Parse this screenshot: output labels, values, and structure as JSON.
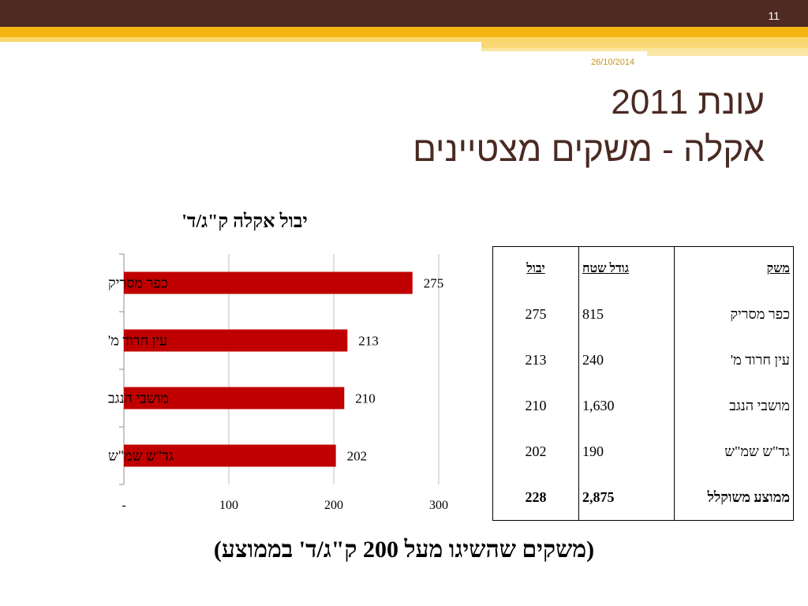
{
  "slide_number": "11",
  "date": "26/10/2014",
  "title_line1": "עונת 2011",
  "title_line2": "אקלה - משקים מצטיינים",
  "chart_data": {
    "type": "bar",
    "orientation": "horizontal",
    "title": "יבול אקלה ק\"ג/ד'",
    "categories": [
      "כפר מסריק",
      "עין חרוד מ'",
      "מושבי הנגב",
      "גד\"ש שמ\"ש"
    ],
    "values": [
      275,
      213,
      210,
      202
    ],
    "xlim": [
      0,
      300
    ],
    "x_ticks": [
      "-",
      "100",
      "200",
      "300"
    ],
    "grid": true,
    "bar_color": "#c00000"
  },
  "table": {
    "headers": {
      "yield": "יבול",
      "area": "גודל שטח",
      "farm": "משק"
    },
    "rows": [
      {
        "yield": "275",
        "area": "815",
        "farm": "כפר מסריק"
      },
      {
        "yield": "213",
        "area": "240",
        "farm": "עין חרוד מ'"
      },
      {
        "yield": "210",
        "area": "1,630",
        "farm": "מושבי הנגב"
      },
      {
        "yield": "202",
        "area": "190",
        "farm": "גד\"ש שמ\"ש"
      }
    ],
    "average": {
      "yield": "228",
      "area": "2,875",
      "farm": "ממוצע משוקלל"
    }
  },
  "footer_note": "(משקים שהשיגו מעל 200 ק\"ג/ד' בממוצע)",
  "colors": {
    "top_bar": "#4f2a22",
    "accent": "#f4b512",
    "title_text": "#4a2a22",
    "bars": "#c00000"
  }
}
